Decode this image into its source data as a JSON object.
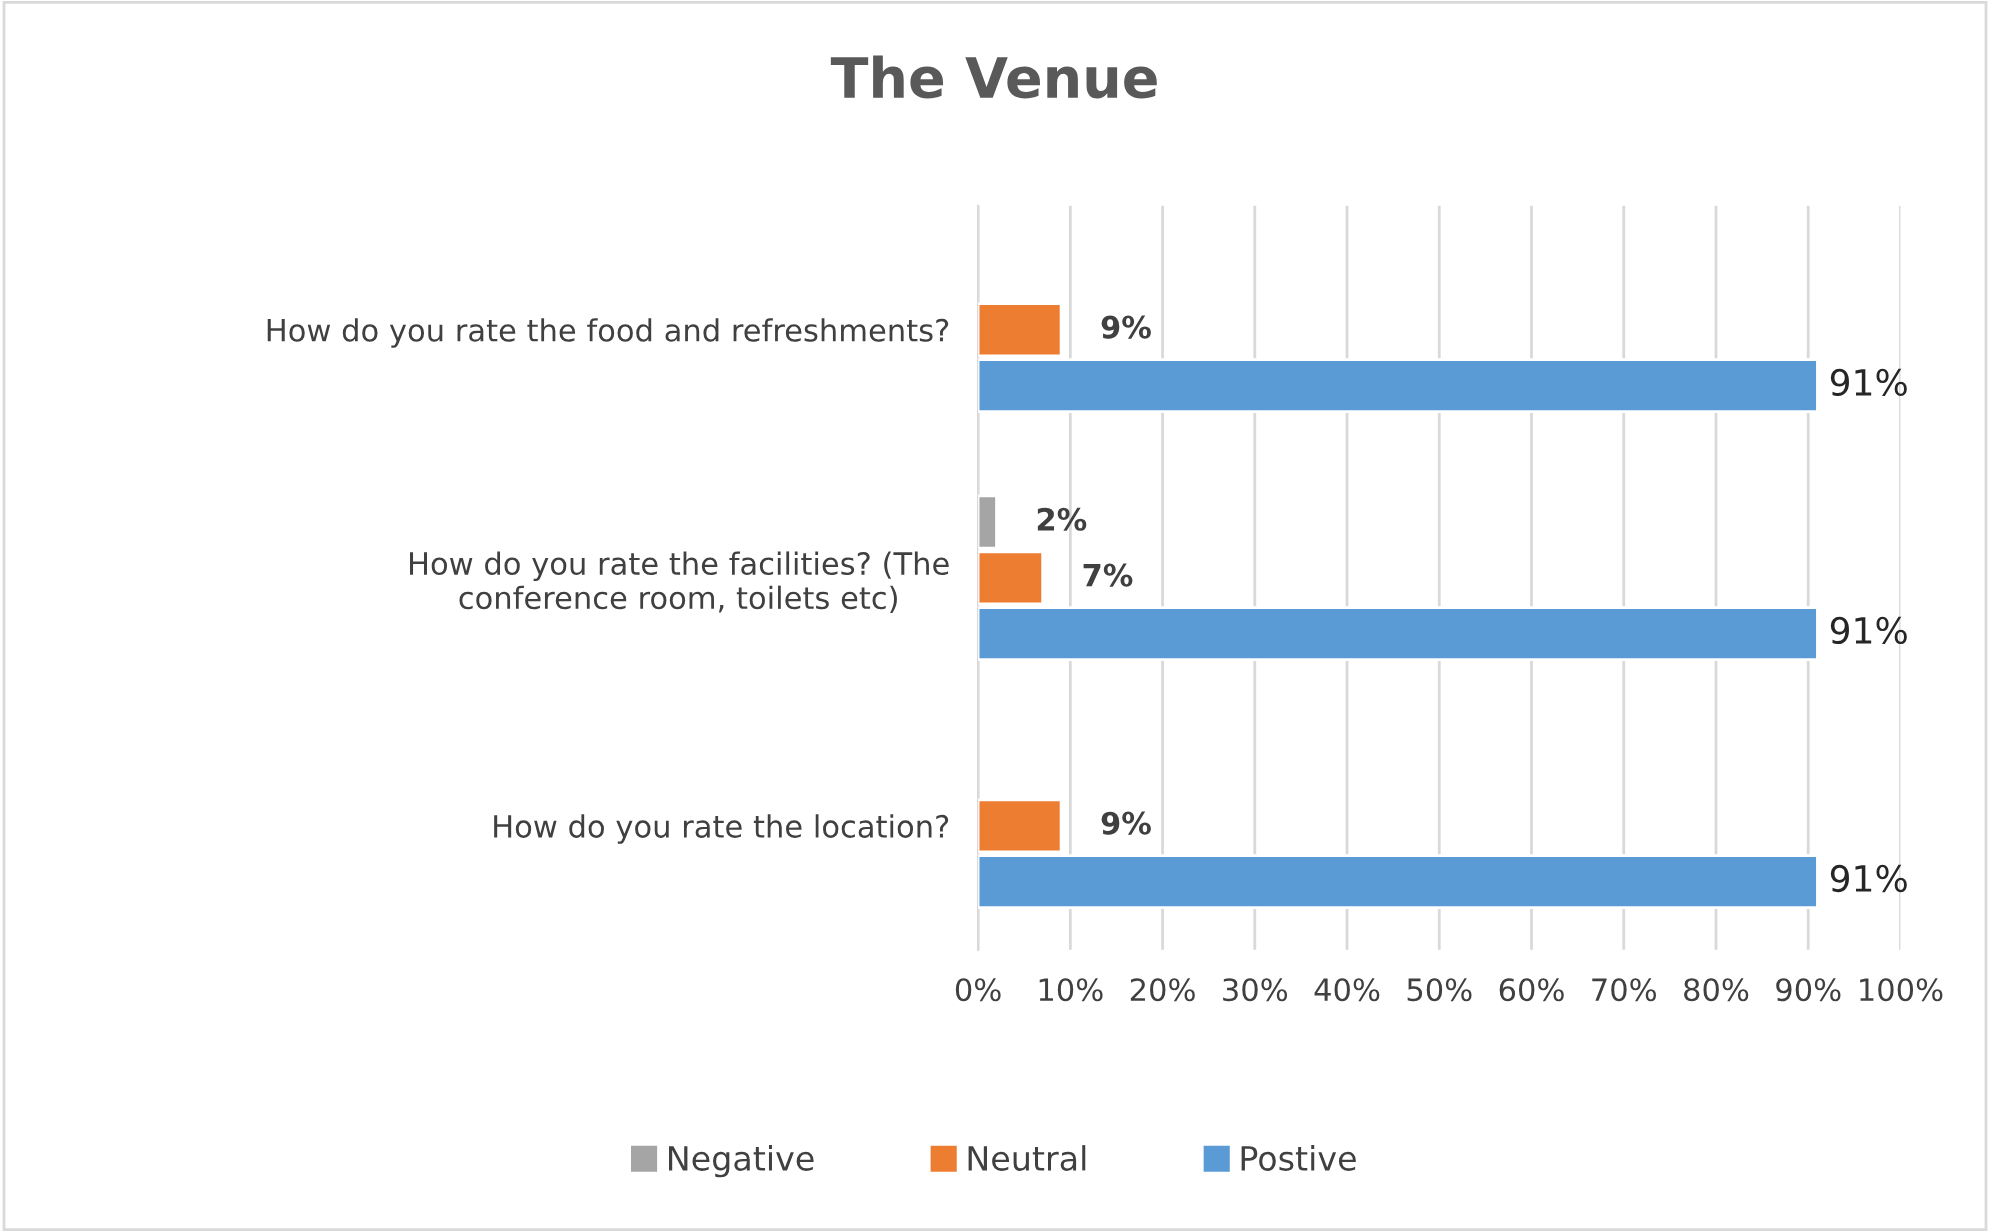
{
  "chart_data": {
    "type": "bar",
    "orientation": "horizontal",
    "title": "The Venue",
    "categories": [
      "How do you rate the food and refreshments?",
      "How do you rate the facilities? (The conference room, toilets etc)",
      "How do you rate the location?"
    ],
    "series": [
      {
        "name": "Negative",
        "color": "#a5a5a5",
        "values": [
          null,
          2,
          null
        ],
        "value_labels": [
          null,
          "2%",
          null
        ]
      },
      {
        "name": "Neutral",
        "color": "#ed7d31",
        "values": [
          9,
          7,
          9
        ],
        "value_labels": [
          "9%",
          "7%",
          "9%"
        ]
      },
      {
        "name": "Postive",
        "color": "#5b9bd5",
        "values": [
          91,
          91,
          91
        ],
        "value_labels": [
          "91%",
          "91%",
          "91%"
        ]
      }
    ],
    "xlim": [
      0,
      100
    ],
    "xticks": [
      {
        "value": 0,
        "label": "0%"
      },
      {
        "value": 10,
        "label": "10%"
      },
      {
        "value": 20,
        "label": "20%"
      },
      {
        "value": 30,
        "label": "30%"
      },
      {
        "value": 40,
        "label": "40%"
      },
      {
        "value": 50,
        "label": "50%"
      },
      {
        "value": 60,
        "label": "60%"
      },
      {
        "value": 70,
        "label": "70%"
      },
      {
        "value": 80,
        "label": "80%"
      },
      {
        "value": 90,
        "label": "90%"
      },
      {
        "value": 100,
        "label": "100%"
      }
    ],
    "grid": "x",
    "legend": "bottom"
  }
}
